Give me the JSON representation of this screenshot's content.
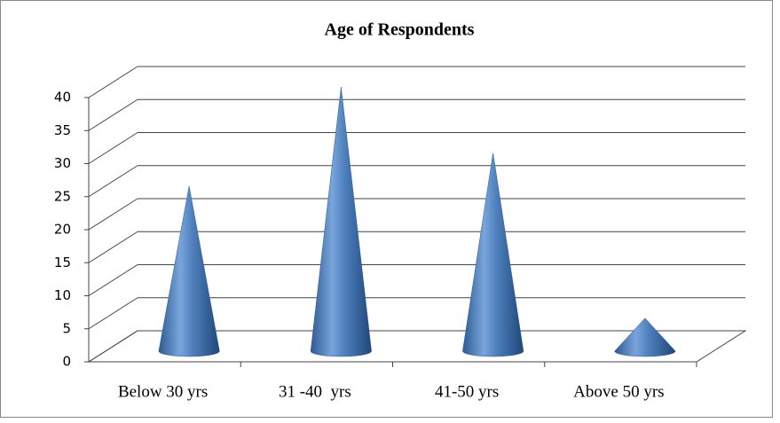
{
  "chart_data": {
    "type": "cone",
    "title": "Age of Respondents",
    "categories": [
      "Below 30 yrs",
      "31 -40  yrs",
      "41-50 yrs",
      "Above 50 yrs"
    ],
    "values": [
      25,
      40,
      30,
      5
    ],
    "color": "#4f81bd",
    "ylim": [
      0,
      40
    ],
    "yticks": [
      0,
      5,
      10,
      15,
      20,
      25,
      30,
      35,
      40
    ],
    "grid": true
  }
}
